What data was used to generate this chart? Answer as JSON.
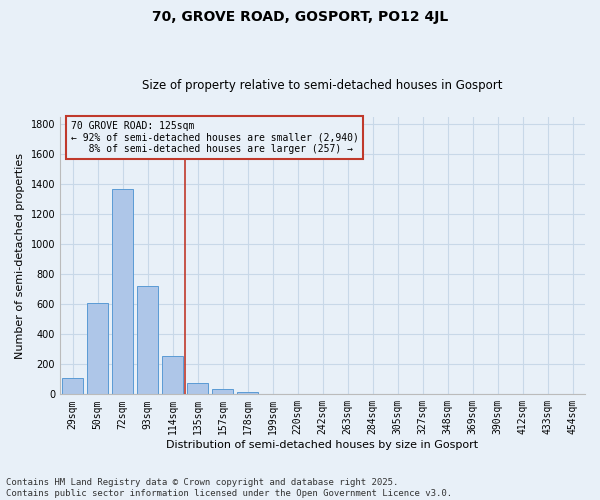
{
  "title": "70, GROVE ROAD, GOSPORT, PO12 4JL",
  "subtitle": "Size of property relative to semi-detached houses in Gosport",
  "xlabel": "Distribution of semi-detached houses by size in Gosport",
  "ylabel": "Number of semi-detached properties",
  "categories": [
    "29sqm",
    "50sqm",
    "72sqm",
    "93sqm",
    "114sqm",
    "135sqm",
    "157sqm",
    "178sqm",
    "199sqm",
    "220sqm",
    "242sqm",
    "263sqm",
    "284sqm",
    "305sqm",
    "327sqm",
    "348sqm",
    "369sqm",
    "390sqm",
    "412sqm",
    "433sqm",
    "454sqm"
  ],
  "values": [
    110,
    610,
    1370,
    725,
    255,
    75,
    35,
    15,
    5,
    0,
    0,
    5,
    0,
    0,
    0,
    0,
    0,
    0,
    0,
    0,
    0
  ],
  "bar_color": "#aec6e8",
  "bar_edge_color": "#5a9bd5",
  "grid_color": "#c8d8e8",
  "background_color": "#e8f0f8",
  "vline_index": 4,
  "vline_color": "#c0392b",
  "annotation_line1": "70 GROVE ROAD: 125sqm",
  "annotation_line2": "← 92% of semi-detached houses are smaller (2,940)",
  "annotation_line3": "   8% of semi-detached houses are larger (257) →",
  "annotation_box_color": "#c0392b",
  "ylim": [
    0,
    1850
  ],
  "yticks": [
    0,
    200,
    400,
    600,
    800,
    1000,
    1200,
    1400,
    1600,
    1800
  ],
  "footer_line1": "Contains HM Land Registry data © Crown copyright and database right 2025.",
  "footer_line2": "Contains public sector information licensed under the Open Government Licence v3.0.",
  "title_fontsize": 10,
  "subtitle_fontsize": 8.5,
  "axis_label_fontsize": 8,
  "tick_fontsize": 7,
  "annotation_fontsize": 7,
  "footer_fontsize": 6.5
}
